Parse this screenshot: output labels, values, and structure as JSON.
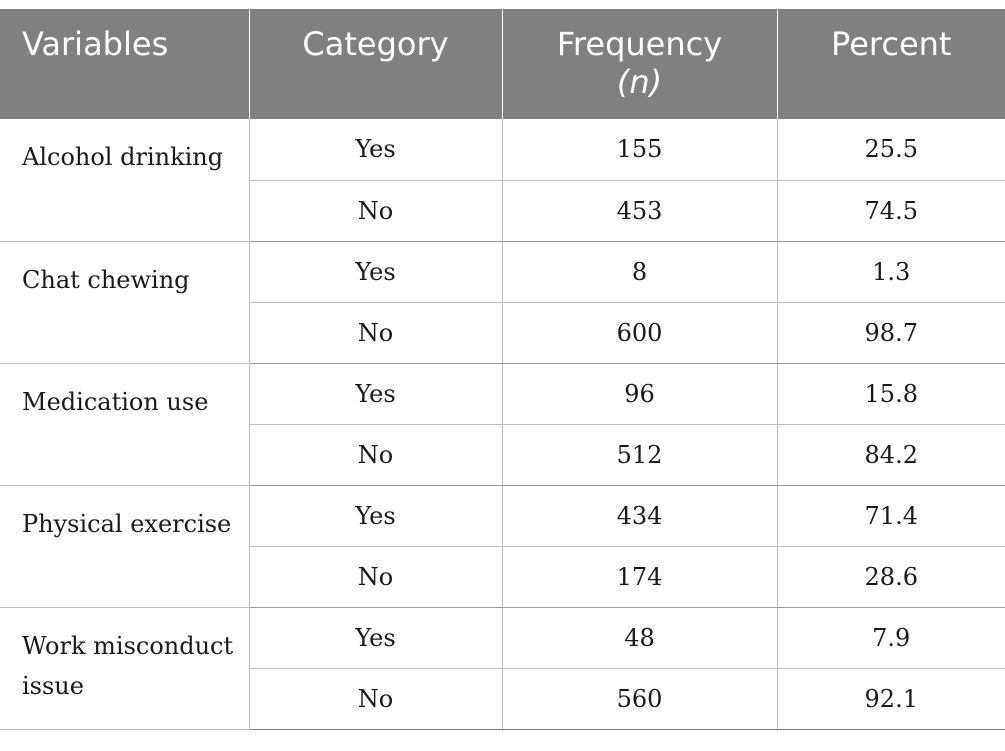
{
  "table": {
    "headers": {
      "variables": "Variables",
      "category": "Category",
      "frequency": "Frequency",
      "frequency_n": "(n)",
      "percent": "Percent"
    },
    "groups": [
      {
        "variable": "Alcohol drinking",
        "rows": [
          {
            "category": "Yes",
            "frequency": "155",
            "percent": "25.5"
          },
          {
            "category": "No",
            "frequency": "453",
            "percent": "74.5"
          }
        ]
      },
      {
        "variable": "Chat chewing",
        "rows": [
          {
            "category": "Yes",
            "frequency": "8",
            "percent": "1.3"
          },
          {
            "category": "No",
            "frequency": "600",
            "percent": "98.7"
          }
        ]
      },
      {
        "variable": "Medication use",
        "rows": [
          {
            "category": "Yes",
            "frequency": "96",
            "percent": "15.8"
          },
          {
            "category": "No",
            "frequency": "512",
            "percent": "84.2"
          }
        ]
      },
      {
        "variable": "Physical exercise",
        "rows": [
          {
            "category": "Yes",
            "frequency": "434",
            "percent": "71.4"
          },
          {
            "category": "No",
            "frequency": "174",
            "percent": "28.6"
          }
        ]
      },
      {
        "variable": "Work misconduct issue",
        "rows": [
          {
            "category": "Yes",
            "frequency": "48",
            "percent": "7.9"
          },
          {
            "category": "No",
            "frequency": "560",
            "percent": "92.1"
          }
        ]
      }
    ]
  }
}
